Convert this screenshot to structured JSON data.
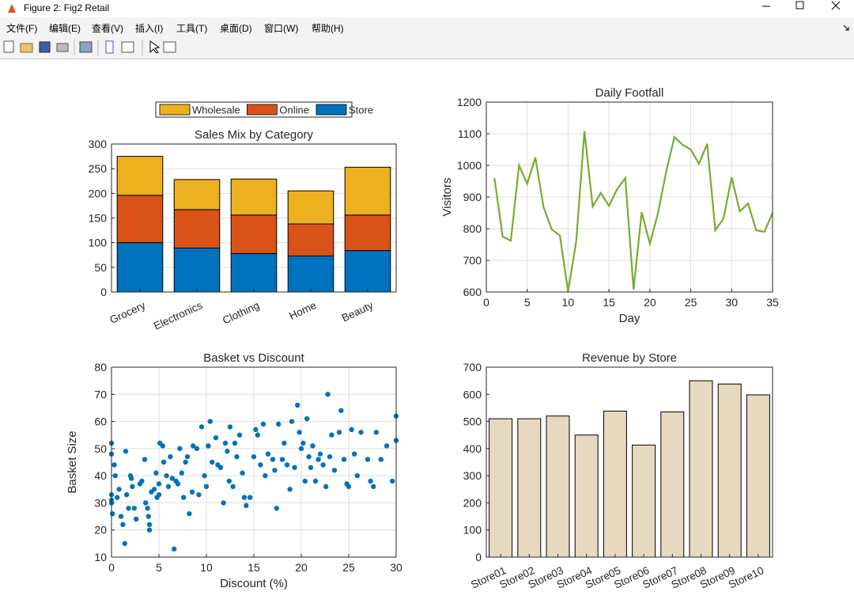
{
  "window": {
    "title": "Figure 2: Fig2 Retail",
    "menu": [
      "文件(F)",
      "编辑(E)",
      "查看(V)",
      "插入(I)",
      "工具(T)",
      "桌面(D)",
      "窗口(W)",
      "帮助(H)"
    ]
  },
  "chart_data": [
    {
      "type": "stacked_bar",
      "title": "Sales Mix by Category",
      "categories": [
        "Grocery",
        "Electronics",
        "Clothing",
        "Home",
        "Beauty"
      ],
      "series": [
        {
          "name": "Wholesale",
          "color": "#EDB120",
          "values": [
            79,
            61,
            73,
            67,
            97
          ]
        },
        {
          "name": "Online",
          "color": "#D95319",
          "values": [
            96,
            78,
            78,
            65,
            72
          ]
        },
        {
          "name": "Store",
          "color": "#0072BD",
          "values": [
            100,
            89,
            78,
            73,
            84
          ]
        }
      ],
      "ylim": [
        0,
        300
      ],
      "yticks": [
        0,
        50,
        100,
        150,
        200,
        250,
        300
      ],
      "grid": true,
      "legend": "top"
    },
    {
      "type": "line",
      "title": "Daily Footfall",
      "xlabel": "Day",
      "ylabel": "Visitors",
      "x": [
        1,
        2,
        3,
        4,
        5,
        6,
        7,
        8,
        9,
        10,
        11,
        12,
        13,
        14,
        15,
        16,
        17,
        18,
        19,
        20,
        21,
        22,
        23,
        24,
        25,
        26,
        27,
        28,
        29,
        30,
        31,
        32,
        33,
        34,
        35
      ],
      "values": [
        960,
        775,
        762,
        1000,
        942,
        1025,
        868,
        798,
        778,
        602,
        762,
        1108,
        870,
        913,
        872,
        925,
        960,
        608,
        852,
        752,
        850,
        980,
        1090,
        1065,
        1050,
        1005,
        1068,
        795,
        832,
        962,
        855,
        880,
        795,
        790,
        850
      ],
      "color": "#77AC30",
      "xlim": [
        0,
        35
      ],
      "xticks": [
        0,
        5,
        10,
        15,
        20,
        25,
        30,
        35
      ],
      "ylim": [
        600,
        1200
      ],
      "yticks": [
        600,
        700,
        800,
        900,
        1000,
        1100,
        1200
      ],
      "grid": true
    },
    {
      "type": "scatter",
      "title": "Basket vs Discount",
      "xlabel": "Discount (%)",
      "ylabel": "Basket Size",
      "color": "#0072BD",
      "x": [
        0,
        0,
        0,
        0,
        0,
        0.1,
        0.3,
        0.4,
        0.6,
        0.8,
        1,
        1.2,
        1.4,
        1.5,
        1.6,
        1.8,
        2,
        2.1,
        2.2,
        2.4,
        2.6,
        3,
        3.2,
        3.5,
        3.6,
        3.8,
        3.9,
        4,
        4,
        4.2,
        4.5,
        4.7,
        4.8,
        5,
        5,
        5.1,
        5.4,
        5.5,
        5.8,
        6,
        6.2,
        6.4,
        6.6,
        6.8,
        7,
        7.2,
        7.4,
        7.6,
        7.8,
        8,
        8.2,
        8.5,
        8.6,
        9,
        9.2,
        9.5,
        9.8,
        10,
        10.2,
        10.4,
        10.6,
        11,
        11.2,
        11.5,
        11.8,
        12,
        12.2,
        12.4,
        12.5,
        12.8,
        13,
        13.2,
        13.5,
        13.8,
        14,
        14.2,
        14.6,
        15,
        15.2,
        15.4,
        15.7,
        16,
        16.2,
        16.5,
        17,
        17.2,
        17.4,
        17.6,
        18,
        18.2,
        18.5,
        18.8,
        19,
        19.3,
        19.6,
        19.8,
        20,
        20.2,
        20.4,
        20.6,
        20.8,
        21,
        21.2,
        21.5,
        21.8,
        22,
        22.3,
        22.6,
        22.8,
        23,
        23.2,
        23.5,
        24,
        24.2,
        24.5,
        24.8,
        25,
        25.3,
        25.6,
        25.9,
        26.3,
        27,
        27.3,
        27.6,
        27.9,
        28.4,
        29,
        29.6,
        30,
        30
      ],
      "values": [
        52,
        48,
        33,
        31,
        30,
        26,
        44,
        40,
        32,
        35,
        25,
        22,
        15,
        49,
        33,
        28,
        40,
        39,
        36,
        28,
        24,
        37,
        38,
        46,
        30,
        28,
        25,
        22,
        20,
        34,
        35,
        41,
        32,
        33,
        37,
        52,
        51,
        45,
        40,
        36,
        47,
        39,
        13,
        38,
        37,
        50,
        41,
        32,
        45,
        47,
        26,
        34,
        51,
        50,
        33,
        58,
        40,
        36,
        51,
        60,
        45,
        54,
        44,
        43,
        30,
        52,
        49,
        38,
        58,
        36,
        52,
        47,
        55,
        41,
        32,
        29,
        32,
        47,
        57,
        55,
        44,
        59,
        40,
        48,
        46,
        42,
        28,
        59,
        46,
        52,
        44,
        35,
        60,
        43,
        66,
        56,
        50,
        52,
        38,
        61,
        47,
        43,
        51,
        38,
        46,
        48,
        44,
        36,
        70,
        47,
        55,
        42,
        56,
        64,
        46,
        37,
        36,
        57,
        48,
        40,
        56,
        46,
        38,
        36,
        56,
        46,
        51,
        38,
        62,
        53
      ],
      "xlim": [
        0,
        30
      ],
      "xticks": [
        0,
        5,
        10,
        15,
        20,
        25,
        30
      ],
      "ylim": [
        10,
        80
      ],
      "yticks": [
        10,
        20,
        30,
        40,
        50,
        60,
        70,
        80
      ],
      "grid": true
    },
    {
      "type": "bar",
      "title": "Revenue by Store",
      "categories": [
        "Store01",
        "Store02",
        "Store03",
        "Store04",
        "Store05",
        "Store06",
        "Store07",
        "Store08",
        "Store09",
        "Store10"
      ],
      "values": [
        510,
        510,
        520,
        450,
        538,
        413,
        535,
        650,
        638,
        598
      ],
      "color": "#E6D9BF",
      "ylim": [
        0,
        700
      ],
      "yticks": [
        0,
        100,
        200,
        300,
        400,
        500,
        600,
        700
      ],
      "grid": false
    }
  ]
}
